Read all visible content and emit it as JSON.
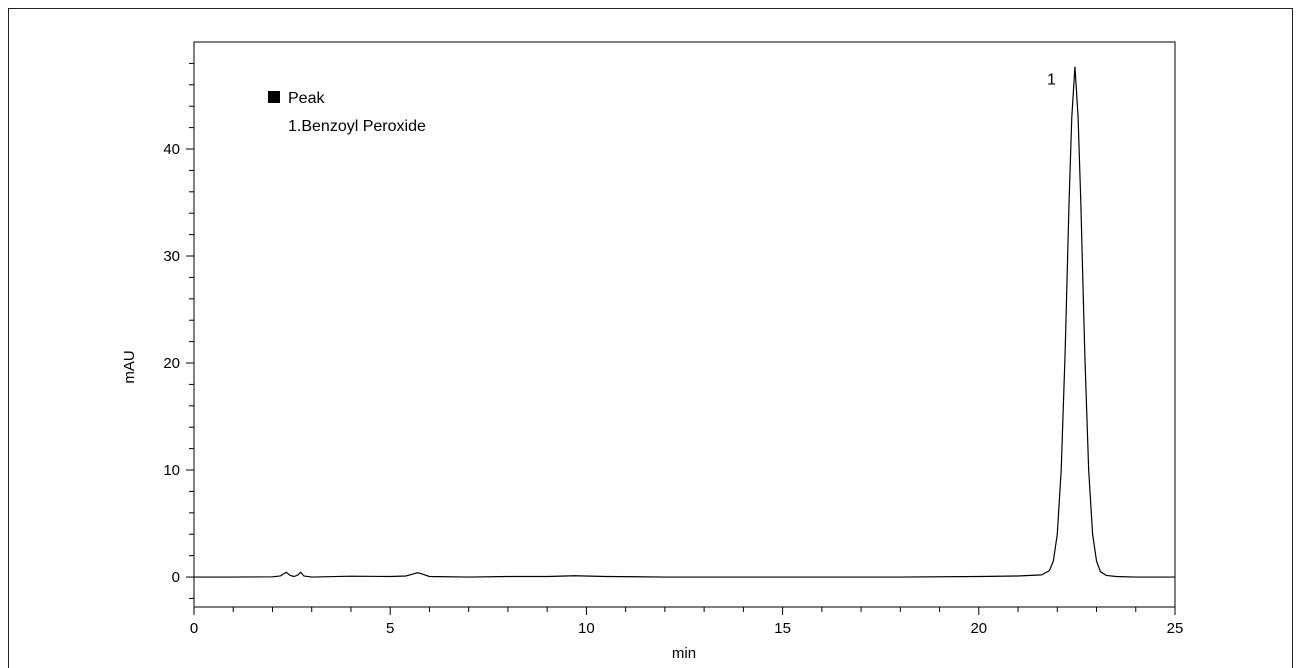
{
  "chart_data": {
    "type": "line",
    "title": "",
    "xlabel": "min",
    "ylabel": "mAU",
    "xlim": [
      0,
      25
    ],
    "ylim": [
      -2.8,
      50
    ],
    "xticks": [
      0,
      5,
      10,
      15,
      20,
      25
    ],
    "yticks": [
      0,
      10,
      20,
      30,
      40
    ],
    "grid": false,
    "legend": {
      "placement": "top-left",
      "header": "Peak",
      "entries": [
        "1.Benzoyl Peroxide"
      ]
    },
    "peak_labels": [
      {
        "text": "1",
        "x": 22.45,
        "y": 47.7
      }
    ],
    "series": [
      {
        "points": [
          [
            0.0,
            0.0
          ],
          [
            1.0,
            0.0
          ],
          [
            2.0,
            0.02
          ],
          [
            2.2,
            0.1
          ],
          [
            2.35,
            0.45
          ],
          [
            2.45,
            0.15
          ],
          [
            2.55,
            0.05
          ],
          [
            2.65,
            0.2
          ],
          [
            2.72,
            0.45
          ],
          [
            2.8,
            0.1
          ],
          [
            3.0,
            0.0
          ],
          [
            4.0,
            0.08
          ],
          [
            5.0,
            0.05
          ],
          [
            5.4,
            0.1
          ],
          [
            5.6,
            0.3
          ],
          [
            5.7,
            0.4
          ],
          [
            5.8,
            0.3
          ],
          [
            6.0,
            0.05
          ],
          [
            7.0,
            0.0
          ],
          [
            8.0,
            0.05
          ],
          [
            9.0,
            0.05
          ],
          [
            9.7,
            0.12
          ],
          [
            10.5,
            0.05
          ],
          [
            12.0,
            0.0
          ],
          [
            14.0,
            0.0
          ],
          [
            16.0,
            0.0
          ],
          [
            18.0,
            0.0
          ],
          [
            20.0,
            0.05
          ],
          [
            21.0,
            0.1
          ],
          [
            21.6,
            0.2
          ],
          [
            21.8,
            0.6
          ],
          [
            21.9,
            1.5
          ],
          [
            22.0,
            4.0
          ],
          [
            22.1,
            10.0
          ],
          [
            22.2,
            21.0
          ],
          [
            22.3,
            35.0
          ],
          [
            22.37,
            43.0
          ],
          [
            22.45,
            47.7
          ],
          [
            22.53,
            43.0
          ],
          [
            22.6,
            35.0
          ],
          [
            22.7,
            21.0
          ],
          [
            22.8,
            10.0
          ],
          [
            22.9,
            4.0
          ],
          [
            23.0,
            1.5
          ],
          [
            23.1,
            0.5
          ],
          [
            23.25,
            0.15
          ],
          [
            23.5,
            0.05
          ],
          [
            24.0,
            0.0
          ],
          [
            25.0,
            0.0
          ]
        ]
      }
    ]
  }
}
